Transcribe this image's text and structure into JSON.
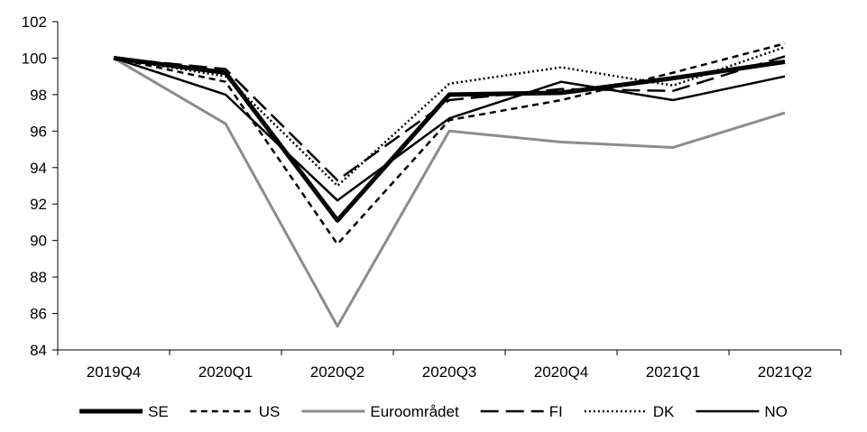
{
  "chart_data": {
    "type": "line",
    "categories": [
      "2019Q4",
      "2020Q1",
      "2020Q2",
      "2020Q3",
      "2020Q4",
      "2021Q1",
      "2021Q2"
    ],
    "ylim": [
      84,
      102
    ],
    "yticks": [
      84,
      86,
      88,
      90,
      92,
      94,
      96,
      98,
      100,
      102
    ],
    "ytick_labels": [
      "84",
      "86",
      "88",
      "90",
      "92",
      "94",
      "96",
      "98",
      "100",
      "102"
    ],
    "grid": false,
    "legend_position": "bottom",
    "series": [
      {
        "name": "SE",
        "values": [
          100.0,
          99.2,
          91.1,
          98.0,
          98.1,
          98.9,
          99.8
        ],
        "color": "#000000",
        "style": "solid-thick"
      },
      {
        "name": "US",
        "values": [
          100.0,
          98.7,
          89.8,
          96.6,
          97.7,
          99.2,
          100.8
        ],
        "color": "#000000",
        "style": "short-dash"
      },
      {
        "name": "Euroområdet",
        "values": [
          100.0,
          96.4,
          85.3,
          96.0,
          95.4,
          95.1,
          97.0
        ],
        "color": "#8c8c8c",
        "style": "solid"
      },
      {
        "name": "FI",
        "values": [
          100.0,
          99.4,
          93.3,
          97.7,
          98.3,
          98.2,
          100.1
        ],
        "color": "#000000",
        "style": "long-dash"
      },
      {
        "name": "DK",
        "values": [
          100.0,
          99.0,
          93.0,
          98.6,
          99.5,
          98.5,
          100.6
        ],
        "color": "#000000",
        "style": "dot"
      },
      {
        "name": "NO",
        "values": [
          100.0,
          98.0,
          92.2,
          96.7,
          98.7,
          97.7,
          99.0
        ],
        "color": "#000000",
        "style": "solid"
      }
    ]
  }
}
